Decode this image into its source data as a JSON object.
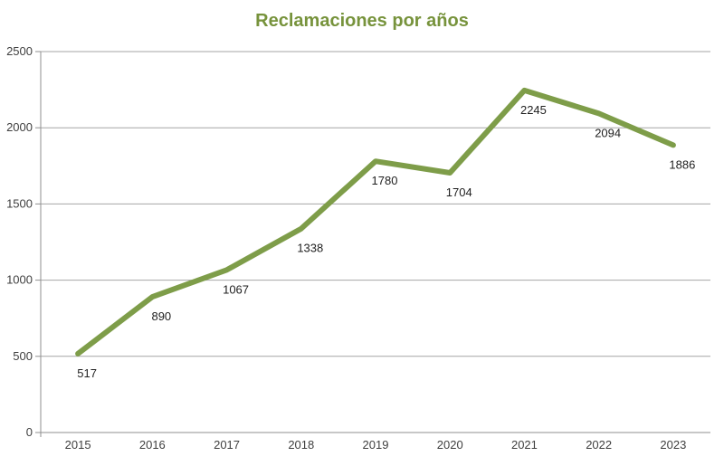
{
  "chart_data": {
    "type": "line",
    "title": "Reclamaciones por años",
    "categories": [
      "2015",
      "2016",
      "2017",
      "2018",
      "2019",
      "2020",
      "2021",
      "2022",
      "2023"
    ],
    "values": [
      517,
      890,
      1067,
      1338,
      1780,
      1704,
      2245,
      2094,
      1886
    ],
    "data_labels": [
      "517",
      "890",
      "1067",
      "1338",
      "1780",
      "1704",
      "2245",
      "2094",
      "1886"
    ],
    "yticks": [
      "0",
      "500",
      "1000",
      "1500",
      "2000",
      "2500"
    ],
    "ylim": [
      0,
      2500
    ],
    "ytick_step": 500,
    "xlabel": "",
    "ylabel": "",
    "grid": "horizontal",
    "legend": "none",
    "markers": false,
    "colors": {
      "line": "#7E9D49",
      "title": "#77933C",
      "axis_text": "#3F3F3F",
      "data_label_text": "#1F1F1F",
      "gridline": "#A6A6A6",
      "axis_line": "#8F8F8F",
      "background": "#FFFFFF"
    }
  }
}
